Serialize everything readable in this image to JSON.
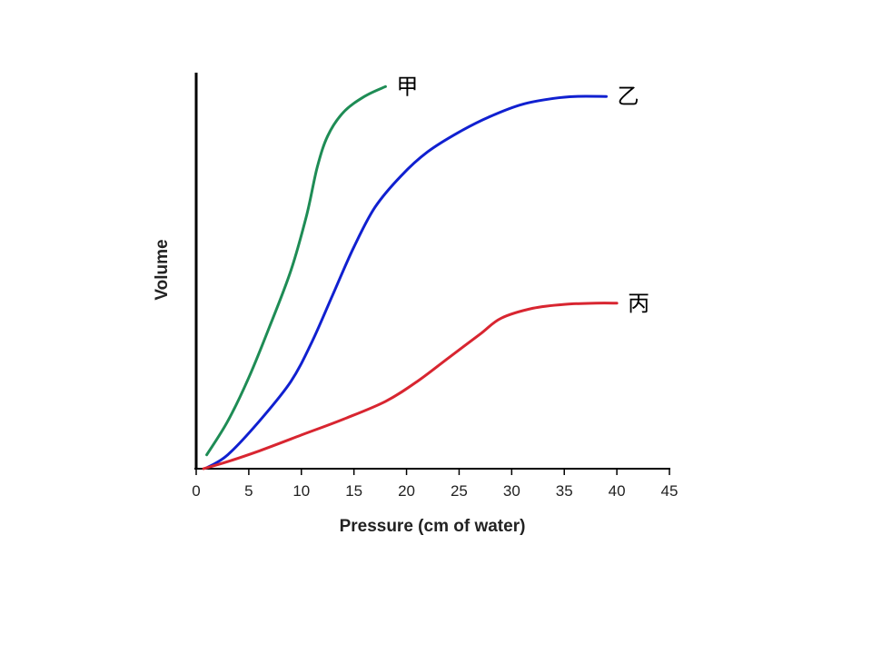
{
  "chart_data": {
    "type": "line",
    "title": "",
    "xlabel": "Pressure (cm of water)",
    "ylabel": "Volume",
    "xlim": [
      0,
      45
    ],
    "ylim": [
      0,
      100
    ],
    "x_ticks": [
      0,
      5,
      10,
      15,
      20,
      25,
      30,
      35,
      40,
      45
    ],
    "y_ticks_shown": false,
    "grid": false,
    "legend": "none",
    "series": [
      {
        "name": "甲",
        "color": "#1e8c55",
        "points": [
          [
            1,
            3.5
          ],
          [
            3,
            12
          ],
          [
            5,
            23
          ],
          [
            7,
            36
          ],
          [
            9,
            50
          ],
          [
            10.5,
            64
          ],
          [
            11.5,
            76
          ],
          [
            12.5,
            84
          ],
          [
            14,
            90
          ],
          [
            16,
            94
          ],
          [
            18,
            96.5
          ]
        ]
      },
      {
        "name": "乙",
        "color": "#1020d0",
        "points": [
          [
            1,
            0.2
          ],
          [
            3,
            3.5
          ],
          [
            6,
            12
          ],
          [
            9,
            22
          ],
          [
            11,
            32
          ],
          [
            13,
            44
          ],
          [
            15,
            56
          ],
          [
            17,
            66
          ],
          [
            19.5,
            74
          ],
          [
            22,
            80
          ],
          [
            25,
            85
          ],
          [
            28,
            89
          ],
          [
            31,
            92
          ],
          [
            34,
            93.5
          ],
          [
            36,
            94
          ],
          [
            39,
            94
          ]
        ]
      },
      {
        "name": "丙",
        "color": "#d82530",
        "points": [
          [
            0.7,
            0
          ],
          [
            3,
            1.8
          ],
          [
            6,
            4.5
          ],
          [
            10,
            8.5
          ],
          [
            14,
            12.5
          ],
          [
            18,
            17
          ],
          [
            21,
            22
          ],
          [
            24,
            28
          ],
          [
            27,
            34
          ],
          [
            29,
            38
          ],
          [
            32,
            40.5
          ],
          [
            35,
            41.5
          ],
          [
            38,
            41.8
          ],
          [
            40,
            41.8
          ]
        ]
      }
    ]
  }
}
